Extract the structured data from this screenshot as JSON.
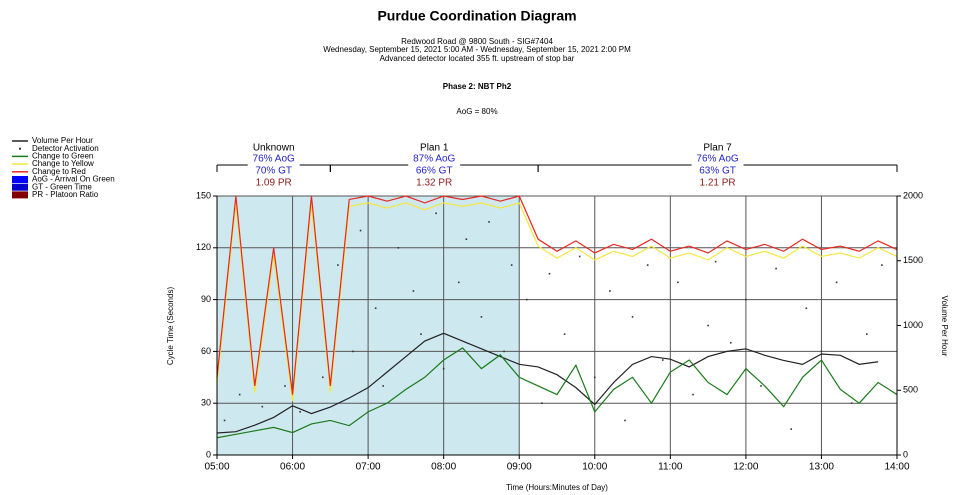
{
  "chart_data": {
    "type": "line",
    "title": "Purdue Coordination Diagram",
    "subtitle": [
      "Redwood Road @ 9800 South - SIG#7404",
      "Wednesday, September 15, 2021 5:00 AM - Wednesday, September 15, 2021 2:00 PM",
      "Advanced detector located 355 ft. upstream of stop bar"
    ],
    "phase_title": "Phase 2: NBT Ph2",
    "aog_summary": "AoG = 80%",
    "ylabel": "Cycle Time (Seconds)",
    "y2label": "Volume Per Hour",
    "xlabel": "Time (Hours:Minutes of Day)",
    "xlim": [
      5,
      14
    ],
    "xticks": [
      {
        "value": 5,
        "label": "05:00"
      },
      {
        "value": 6,
        "label": "06:00"
      },
      {
        "value": 7,
        "label": "07:00"
      },
      {
        "value": 8,
        "label": "08:00"
      },
      {
        "value": 9,
        "label": "09:00"
      },
      {
        "value": 10,
        "label": "10:00"
      },
      {
        "value": 11,
        "label": "11:00"
      },
      {
        "value": 12,
        "label": "12:00"
      },
      {
        "value": 13,
        "label": "13:00"
      },
      {
        "value": 14,
        "label": "14:00"
      }
    ],
    "ylim": [
      0,
      150
    ],
    "yticks": [
      0,
      30,
      60,
      90,
      120,
      150
    ],
    "y2lim": [
      0,
      2000
    ],
    "y2ticks": [
      0,
      500,
      1000,
      1500,
      2000
    ],
    "grid": true,
    "shaded_xrange": [
      5,
      9
    ],
    "shade_color": "#add8e6",
    "x": [
      5,
      5.25,
      5.5,
      5.75,
      6,
      6.25,
      6.5,
      6.75,
      7,
      7.25,
      7.5,
      7.75,
      8,
      8.25,
      8.5,
      8.75,
      9,
      9.25,
      9.5,
      9.75,
      10,
      10.25,
      10.5,
      10.75,
      11,
      11.25,
      11.5,
      11.75,
      12,
      12.25,
      12.5,
      12.75,
      13,
      13.25,
      13.5,
      13.75,
      14
    ],
    "series": [
      {
        "name": "Volume Per Hour",
        "color": "#222222",
        "axis": "y2",
        "values": [
          170,
          180,
          230,
          290,
          380,
          320,
          370,
          440,
          520,
          640,
          760,
          880,
          940,
          880,
          820,
          760,
          700,
          680,
          620,
          520,
          390,
          560,
          700,
          760,
          740,
          680,
          760,
          800,
          820,
          770,
          730,
          700,
          780,
          770,
          700,
          720,
          null
        ]
      },
      {
        "name": "Change to Green",
        "color": "#1a7a1a",
        "values": [
          10,
          12,
          14,
          16,
          13,
          18,
          20,
          17,
          25,
          30,
          38,
          45,
          55,
          62,
          50,
          58,
          45,
          40,
          35,
          52,
          25,
          38,
          45,
          30,
          48,
          55,
          42,
          35,
          50,
          40,
          28,
          45,
          55,
          38,
          30,
          42,
          35
        ]
      },
      {
        "name": "Change to Yellow",
        "color": "#f5e642",
        "values": [
          41,
          146,
          36,
          116,
          31,
          146,
          36,
          144,
          146,
          143,
          146,
          142,
          146,
          144,
          146,
          143,
          146,
          121,
          114,
          120,
          113,
          118,
          115,
          121,
          114,
          117,
          113,
          120,
          115,
          118,
          114,
          121,
          115,
          117,
          114,
          120,
          115
        ]
      },
      {
        "name": "Change to Red",
        "color": "#e8261e",
        "values": [
          45,
          150,
          40,
          120,
          35,
          150,
          40,
          148,
          150,
          147,
          150,
          146,
          150,
          148,
          150,
          147,
          150,
          125,
          118,
          124,
          117,
          122,
          119,
          125,
          118,
          121,
          117,
          124,
          119,
          122,
          118,
          125,
          119,
          121,
          118,
          124,
          119
        ]
      }
    ],
    "detector": {
      "name": "Detector Activation",
      "color": "#333333",
      "x": [
        5.1,
        5.3,
        5.6,
        5.9,
        6.1,
        6.4,
        6.6,
        6.8,
        6.9,
        7.1,
        7.2,
        7.4,
        7.6,
        7.7,
        7.9,
        8.0,
        8.2,
        8.3,
        8.5,
        8.6,
        8.8,
        8.9,
        9.1,
        9.3,
        9.4,
        9.6,
        9.8,
        10.0,
        10.2,
        10.4,
        10.5,
        10.7,
        10.9,
        11.1,
        11.3,
        11.5,
        11.6,
        11.8,
        12.0,
        12.2,
        12.4,
        12.6,
        12.8,
        13.0,
        13.2,
        13.4,
        13.6,
        13.8
      ],
      "y": [
        20,
        35,
        28,
        40,
        25,
        45,
        110,
        60,
        130,
        85,
        40,
        120,
        95,
        70,
        140,
        50,
        100,
        125,
        80,
        135,
        60,
        110,
        90,
        30,
        105,
        70,
        115,
        45,
        95,
        20,
        80,
        110,
        55,
        100,
        35,
        75,
        112,
        65,
        90,
        40,
        108,
        15,
        85,
        60,
        100,
        30,
        70,
        110
      ]
    },
    "legend_extra": [
      {
        "label": "AoG - Arrival On Green",
        "color": "#0000ff"
      },
      {
        "label": "GT - Green Time",
        "color": "#0000cc"
      },
      {
        "label": "PR - Platoon Ratio",
        "color": "#800000"
      }
    ],
    "plans": [
      {
        "name": "Unknown",
        "aog": "76% AoG",
        "gt": "70% GT",
        "pr": "1.09 PR",
        "start": 5,
        "end": 6.5
      },
      {
        "name": "Plan 1",
        "aog": "87% AoG",
        "gt": "66% GT",
        "pr": "1.32 PR",
        "start": 6.5,
        "end": 9.25
      },
      {
        "name": "Plan 7",
        "aog": "76% AoG",
        "gt": "63% GT",
        "pr": "1.21 PR",
        "start": 9.25,
        "end": 14
      }
    ]
  }
}
